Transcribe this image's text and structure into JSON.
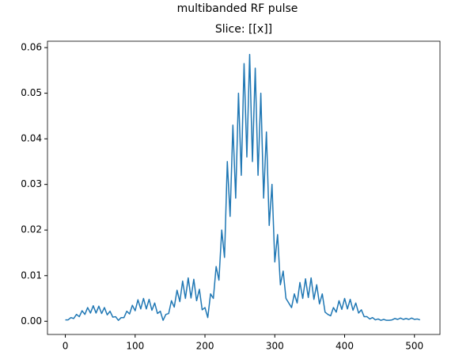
{
  "chart_data": {
    "type": "line",
    "suptitle": "multibanded RF pulse",
    "title": "Slice: [[x]]",
    "x": [
      0,
      4,
      8,
      12,
      16,
      20,
      24,
      28,
      32,
      36,
      40,
      44,
      48,
      52,
      56,
      60,
      64,
      68,
      72,
      76,
      80,
      84,
      88,
      92,
      96,
      100,
      104,
      108,
      112,
      116,
      120,
      124,
      128,
      132,
      136,
      140,
      144,
      148,
      152,
      156,
      160,
      164,
      168,
      172,
      176,
      180,
      184,
      188,
      192,
      196,
      200,
      204,
      208,
      212,
      216,
      220,
      224,
      228,
      232,
      236,
      240,
      244,
      248,
      252,
      256,
      260,
      264,
      268,
      272,
      276,
      280,
      284,
      288,
      292,
      296,
      300,
      304,
      308,
      312,
      316,
      320,
      324,
      328,
      332,
      336,
      340,
      344,
      348,
      352,
      356,
      360,
      364,
      368,
      372,
      376,
      380,
      384,
      388,
      392,
      396,
      400,
      404,
      408,
      412,
      416,
      420,
      424,
      428,
      432,
      436,
      440,
      444,
      448,
      452,
      456,
      460,
      464,
      468,
      472,
      476,
      480,
      484,
      488,
      492,
      496,
      500,
      504,
      508
    ],
    "series": [
      {
        "color": "#1f77b4",
        "values": [
          0.0003,
          0.0003,
          0.0008,
          0.0006,
          0.0015,
          0.001,
          0.0023,
          0.0015,
          0.003,
          0.0018,
          0.0034,
          0.0018,
          0.0033,
          0.0017,
          0.003,
          0.0014,
          0.0022,
          0.0009,
          0.001,
          0.0002,
          0.0008,
          0.0008,
          0.0022,
          0.0016,
          0.0035,
          0.0023,
          0.0047,
          0.0027,
          0.005,
          0.0027,
          0.0048,
          0.0024,
          0.004,
          0.0017,
          0.0022,
          0.0002,
          0.0015,
          0.0017,
          0.0045,
          0.0031,
          0.0068,
          0.0043,
          0.0088,
          0.005,
          0.0095,
          0.0051,
          0.0092,
          0.0045,
          0.007,
          0.0025,
          0.003,
          0.0008,
          0.006,
          0.005,
          0.012,
          0.009,
          0.02,
          0.014,
          0.035,
          0.023,
          0.043,
          0.027,
          0.05,
          0.032,
          0.0565,
          0.036,
          0.0585,
          0.035,
          0.0555,
          0.032,
          0.05,
          0.027,
          0.0415,
          0.021,
          0.03,
          0.013,
          0.019,
          0.008,
          0.011,
          0.005,
          0.004,
          0.003,
          0.006,
          0.004,
          0.0085,
          0.005,
          0.0093,
          0.0052,
          0.0095,
          0.0048,
          0.008,
          0.0038,
          0.006,
          0.002,
          0.0015,
          0.0012,
          0.003,
          0.002,
          0.0045,
          0.0026,
          0.005,
          0.0027,
          0.0048,
          0.0024,
          0.004,
          0.0018,
          0.0025,
          0.001,
          0.001,
          0.0005,
          0.0008,
          0.0003,
          0.0005,
          0.0002,
          0.0004,
          0.0002,
          0.0002,
          0.0003,
          0.0006,
          0.0004,
          0.0007,
          0.0004,
          0.0006,
          0.0004,
          0.0007,
          0.0004,
          0.0005,
          0.0003
        ]
      }
    ],
    "xlim": [
      -25.55,
      536.55
    ],
    "xticks": [
      0,
      100,
      200,
      300,
      400,
      500
    ],
    "ylim": [
      -0.0029,
      0.0614
    ],
    "yticks": [
      {
        "value": 0,
        "label": "0.00"
      },
      0.01,
      0.02,
      0.03,
      0.04,
      0.05,
      0.06
    ]
  }
}
